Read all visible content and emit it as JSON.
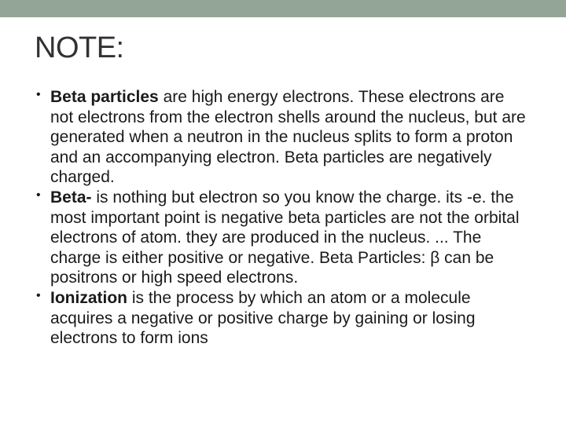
{
  "note_title": "NOTE:",
  "bullets": [
    {
      "bold_lead": "Beta particles ",
      "rest": "are high energy electrons. These electrons are not electrons from the electron shells around the nucleus, but are generated when a neutron in the nucleus splits to form a proton and an accompanying electron. Beta particles are negatively charged."
    },
    {
      "bold_lead": "Beta- ",
      "rest": "is nothing but electron so you know the charge. its -e. the most important point is negative beta particles are not the orbital electrons of atom. they are produced in the nucleus. ... The charge is either positive or negative. Beta Particles: β can be positrons or high speed electrons."
    },
    {
      "bold_lead": "Ionization ",
      "rest": "is the process by which an atom or a molecule acquires a negative or positive charge by gaining or losing electrons to form ions"
    }
  ],
  "colors": {
    "top_bar": "#93a597",
    "background": "#ffffff",
    "title": "#323232",
    "body_text": "#1a1a1a"
  },
  "typography": {
    "title_fontsize": 38,
    "body_fontsize": 21,
    "font_family": "Arial"
  }
}
